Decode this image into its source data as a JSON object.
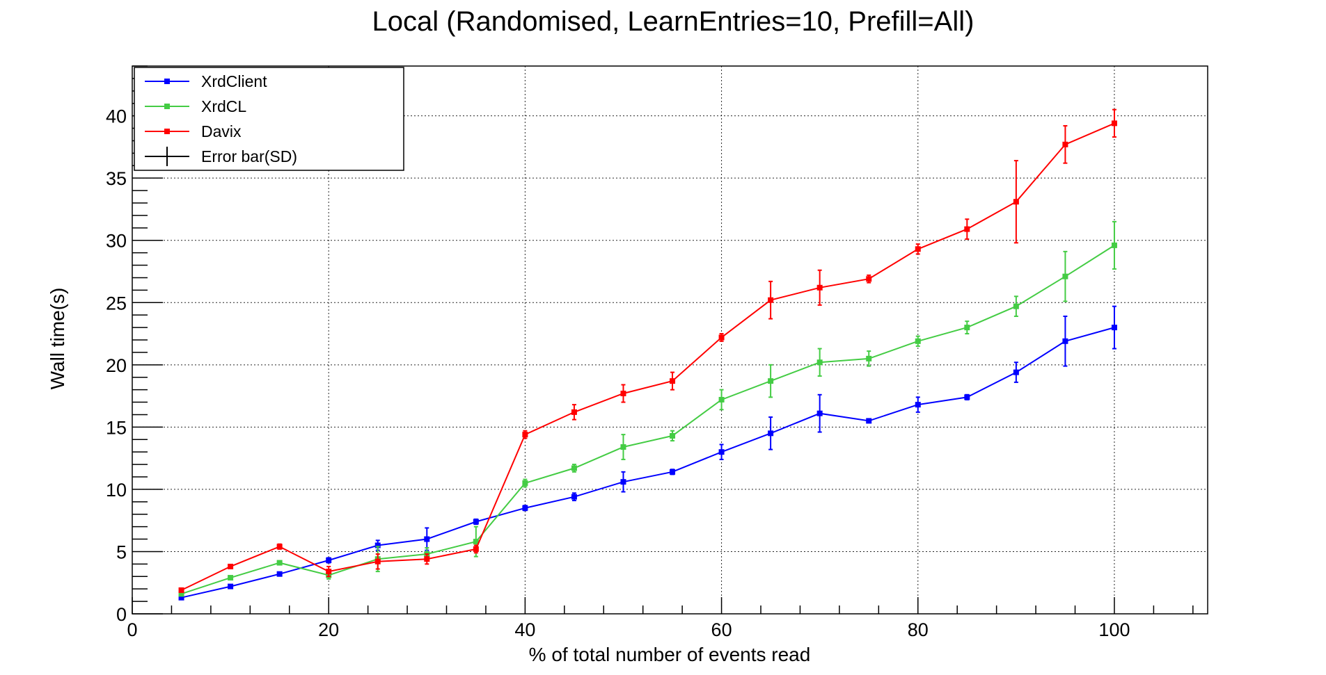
{
  "chart_data": {
    "type": "line",
    "title": "Local (Randomised, LearnEntries=10, Prefill=All)",
    "xlabel": "% of total number of events read",
    "ylabel": "Wall time(s)",
    "xlim": [
      0,
      109.5
    ],
    "ylim": [
      0,
      44
    ],
    "xticks": [
      0,
      20,
      40,
      60,
      80,
      100
    ],
    "yticks": [
      0,
      5,
      10,
      15,
      20,
      25,
      30,
      35,
      40
    ],
    "grid": true,
    "legend_position": "top-left",
    "x": [
      5,
      10,
      15,
      20,
      25,
      30,
      35,
      40,
      45,
      50,
      55,
      60,
      65,
      70,
      75,
      80,
      85,
      90,
      95,
      100
    ],
    "series": [
      {
        "name": "XrdClient",
        "color": "#0000ff",
        "values": [
          1.3,
          2.2,
          3.2,
          4.3,
          5.5,
          6.0,
          7.4,
          8.5,
          9.4,
          10.6,
          11.4,
          13.0,
          14.5,
          16.1,
          15.5,
          16.8,
          17.4,
          19.4,
          21.9,
          23.0
        ],
        "errors": [
          0.1,
          0.1,
          0.1,
          0.2,
          0.4,
          0.9,
          0.2,
          0.2,
          0.3,
          0.8,
          0.2,
          0.6,
          1.3,
          1.5,
          0.1,
          0.6,
          0.2,
          0.8,
          2.0,
          1.7
        ]
      },
      {
        "name": "XrdCL",
        "color": "#44cc44",
        "values": [
          1.6,
          2.9,
          4.1,
          3.1,
          4.4,
          4.8,
          5.8,
          10.5,
          11.7,
          13.4,
          14.3,
          17.2,
          18.7,
          20.2,
          20.5,
          21.9,
          23.0,
          24.7,
          27.1,
          29.6
        ],
        "errors": [
          0.1,
          0.1,
          0.1,
          0.3,
          1.0,
          0.5,
          1.2,
          0.3,
          0.3,
          1.0,
          0.4,
          0.8,
          1.3,
          1.1,
          0.6,
          0.4,
          0.5,
          0.8,
          2.0,
          1.9
        ]
      },
      {
        "name": "Davix",
        "color": "#ff0000",
        "values": [
          1.9,
          3.8,
          5.4,
          3.4,
          4.2,
          4.4,
          5.2,
          14.4,
          16.2,
          17.7,
          18.7,
          22.2,
          25.2,
          26.2,
          26.9,
          29.3,
          30.9,
          33.1,
          37.7,
          39.4
        ],
        "errors": [
          0.1,
          0.1,
          0.2,
          0.4,
          0.6,
          0.4,
          0.3,
          0.3,
          0.6,
          0.7,
          0.7,
          0.3,
          1.5,
          1.4,
          0.3,
          0.4,
          0.8,
          3.3,
          1.5,
          1.1
        ]
      }
    ],
    "legend_extra": {
      "name": "Error bar(SD)",
      "color": "#000000"
    }
  }
}
